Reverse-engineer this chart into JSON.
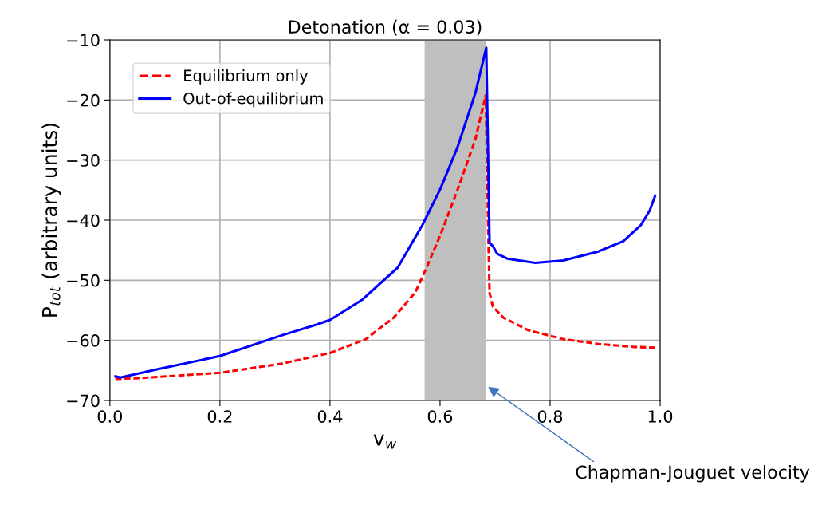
{
  "chart_data": {
    "type": "line",
    "title": "Detonation (α = 0.03)",
    "xlabel": "v$_{w}$",
    "ylabel": "P$_{tot}$ (arbitrary units)",
    "xlim": [
      0,
      1
    ],
    "ylim": [
      -70,
      -10
    ],
    "xticks": [
      {
        "value": 0,
        "label": "0.0"
      },
      0.2,
      0.4,
      0.6,
      0.8,
      {
        "value": 1,
        "label": "1.0"
      }
    ],
    "yticks": [
      -70,
      -60,
      -50,
      -40,
      -30,
      -20,
      -10
    ],
    "grid": true,
    "legend": "top left",
    "bands": [
      {
        "axis": "x",
        "from": 0.572,
        "to": 0.684,
        "color": "#bfbfbf"
      }
    ],
    "annotations": [
      {
        "text": "Chapman-Jouguet velocity",
        "x": 0.684,
        "y": -67.5
      }
    ],
    "series": [
      {
        "name": "Equilibrium only",
        "color": "#ff0000",
        "line_style": "dashed",
        "x": [
          0.01,
          0.05,
          0.2,
          0.311,
          0.4,
          0.465,
          0.516,
          0.555,
          0.574,
          0.6,
          0.632,
          0.664,
          0.683,
          0.688,
          0.69,
          0.696,
          0.715,
          0.76,
          0.824,
          0.888,
          0.953,
          0.991
        ],
        "values": [
          -66.4,
          -66.3,
          -65.4,
          -63.9,
          -62.1,
          -59.8,
          -56.2,
          -52.0,
          -48.2,
          -42.6,
          -34.9,
          -26.6,
          -19.2,
          -43.8,
          -52.1,
          -54.4,
          -56.2,
          -58.3,
          -59.8,
          -60.6,
          -61.1,
          -61.2
        ]
      },
      {
        "name": "Out-of-equilibrium",
        "color": "#0000ff",
        "line_style": "solid",
        "x": [
          0.01,
          0.019,
          0.087,
          0.2,
          0.311,
          0.375,
          0.4,
          0.459,
          0.523,
          0.568,
          0.6,
          0.632,
          0.664,
          0.684,
          0.69,
          0.696,
          0.704,
          0.722,
          0.773,
          0.824,
          0.888,
          0.933,
          0.965,
          0.981,
          0.991
        ],
        "values": [
          -66.0,
          -66.2,
          -64.8,
          -62.6,
          -59.2,
          -57.4,
          -56.6,
          -53.2,
          -47.9,
          -40.8,
          -34.9,
          -27.8,
          -18.9,
          -11.3,
          -43.8,
          -44.3,
          -45.6,
          -46.4,
          -47.1,
          -46.7,
          -45.2,
          -43.5,
          -40.8,
          -38.4,
          -35.9
        ]
      }
    ]
  }
}
